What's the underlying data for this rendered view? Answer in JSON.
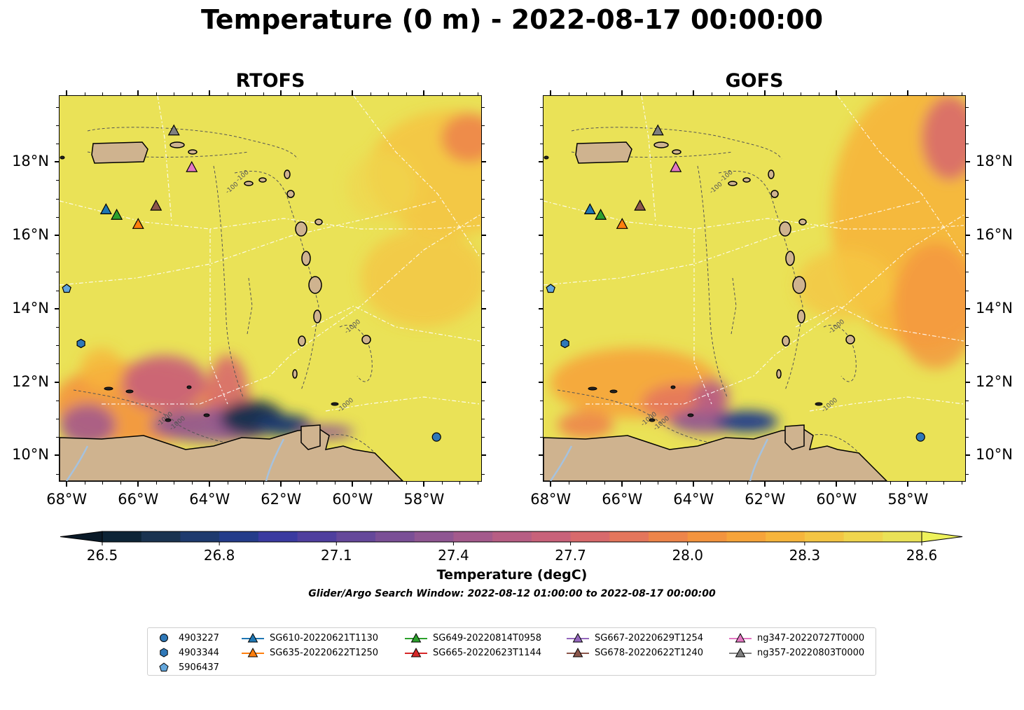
{
  "title": "Temperature (0 m) - 2022-08-17 00:00:00",
  "panels": [
    {
      "title": "RTOFS"
    },
    {
      "title": "GOFS"
    }
  ],
  "axes": {
    "lat_labels": [
      "18°N",
      "16°N",
      "14°N",
      "12°N",
      "10°N"
    ],
    "lon_labels": [
      "68°W",
      "66°W",
      "64°W",
      "62°W",
      "60°W",
      "58°W"
    ]
  },
  "colorbar": {
    "label": "Temperature (degC)",
    "tick_labels": [
      "26.5",
      "26.8",
      "27.1",
      "27.4",
      "27.7",
      "28.0",
      "28.3",
      "28.6"
    ],
    "range": [
      26.5,
      28.6
    ],
    "extend": "both",
    "colors": [
      "#0d2436",
      "#1a3350",
      "#1e3a6e",
      "#243c8a",
      "#3a3aa0",
      "#4f3f9e",
      "#65489a",
      "#7a4f96",
      "#8f5692",
      "#a45a8c",
      "#b75e84",
      "#c8627a",
      "#d86a6c",
      "#e4765c",
      "#ed854a",
      "#f3943e",
      "#f6a43a",
      "#f6b53c",
      "#f4c544",
      "#f0d54e",
      "#eae257"
    ]
  },
  "contour_labels": [
    "-100",
    "-100",
    "-1000",
    "-1000",
    "-1000",
    "-1000",
    "-1000"
  ],
  "search_window": "Glider/Argo Search Window: 2022-08-12 01:00:00 to 2022-08-17 00:00:00",
  "legend": {
    "argo": [
      {
        "label": "4903227",
        "marker": "circle",
        "color": "#2f78b8"
      },
      {
        "label": "4903344",
        "marker": "hexagon",
        "color": "#2f78b8"
      },
      {
        "label": "5906437",
        "marker": "pentagon",
        "color": "#63a6db"
      }
    ],
    "gliders": [
      {
        "label": "SG610-20220621T1130",
        "color": "#1f77b4"
      },
      {
        "label": "SG635-20220622T1250",
        "color": "#ff7f0e"
      },
      {
        "label": "SG649-20220814T0958",
        "color": "#2ca02c"
      },
      {
        "label": "SG665-20220623T1144",
        "color": "#d62728"
      },
      {
        "label": "SG667-20220629T1254",
        "color": "#9467bd"
      },
      {
        "label": "SG678-20220622T1240",
        "color": "#8c564b"
      },
      {
        "label": "ng347-20220727T0000",
        "color": "#e377c2"
      },
      {
        "label": "ng357-20220803T0000",
        "color": "#7f7f7f"
      }
    ]
  },
  "map_points": {
    "gliders": [
      {
        "name": "SG610-20220621T1130",
        "lon": -66.9,
        "lat": 16.7
      },
      {
        "name": "SG649-20220814T0958",
        "lon": -66.6,
        "lat": 16.55
      },
      {
        "name": "SG678-20220622T1240",
        "lon": -65.5,
        "lat": 16.8
      },
      {
        "name": "SG635-20220622T1250",
        "lon": -66.0,
        "lat": 16.3
      },
      {
        "name": "ng357-20220803T0000",
        "lon": -65.0,
        "lat": 18.85
      },
      {
        "name": "ng347-20220727T0000",
        "lon": -64.5,
        "lat": 17.85
      }
    ],
    "argo": [
      {
        "name": "5906437",
        "lon": -68.0,
        "lat": 14.55
      },
      {
        "name": "4903344",
        "lon": -67.6,
        "lat": 13.05
      },
      {
        "name": "4903227",
        "lon": -57.65,
        "lat": 10.5
      }
    ]
  },
  "map_extent": {
    "lon": [
      -68.2,
      -56.4
    ],
    "lat": [
      9.3,
      19.8
    ]
  }
}
